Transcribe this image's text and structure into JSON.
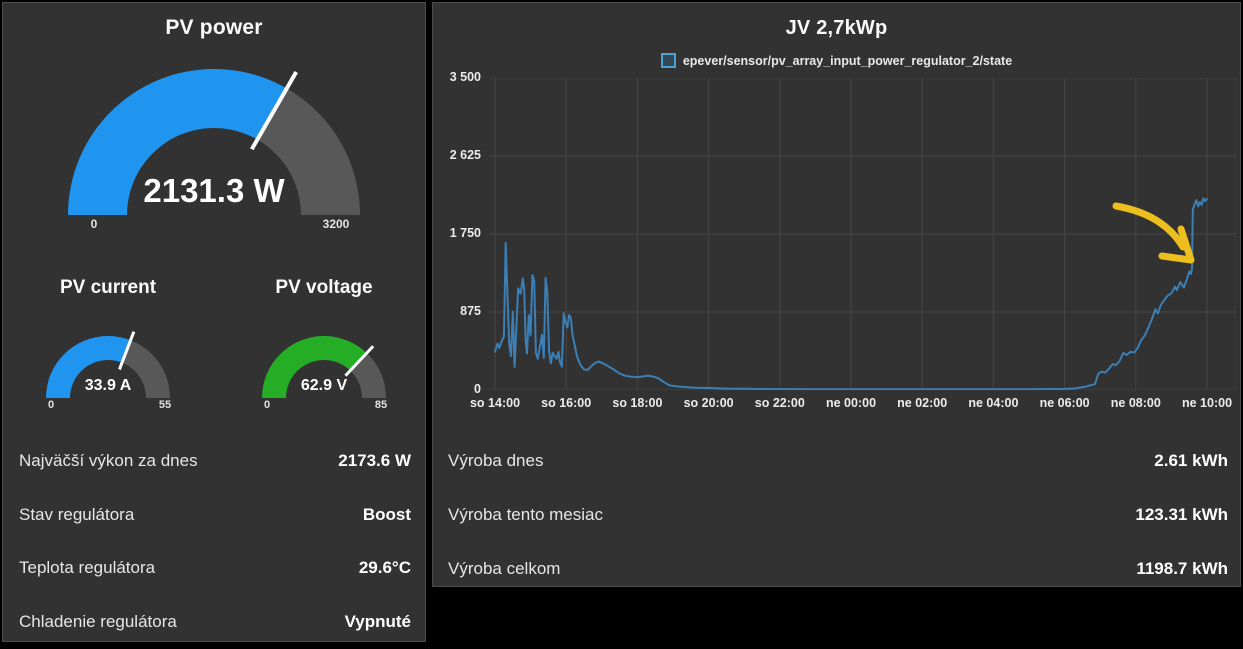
{
  "left_panel": {
    "gauges": [
      {
        "title": "PV power",
        "value_label": "2131.3 W",
        "value": 2131.3,
        "min": 0,
        "max": 3200,
        "min_label": "0",
        "max_label": "3200",
        "fill_color": "#2095f0",
        "track_color": "#585858"
      },
      {
        "title": "PV current",
        "value_label": "33.9 A",
        "value": 33.9,
        "min": 0,
        "max": 55,
        "min_label": "0",
        "max_label": "55",
        "fill_color": "#2095f0",
        "track_color": "#585858"
      },
      {
        "title": "PV voltage",
        "value_label": "62.9 V",
        "value": 62.9,
        "min": 0,
        "max": 85,
        "min_label": "0",
        "max_label": "85",
        "fill_color": "#25ad25",
        "track_color": "#585858"
      }
    ],
    "stats": [
      {
        "label": "Najväčší výkon za dnes",
        "value": "2173.6 W"
      },
      {
        "label": "Stav regulátora",
        "value": "Boost"
      },
      {
        "label": "Teplota regulátora",
        "value": "29.6°C"
      },
      {
        "label": "Chladenie regulátora",
        "value": "Vypnuté"
      }
    ]
  },
  "right_panel": {
    "title": "JV 2,7kWp",
    "legend": {
      "label": "epever/sensor/pv_array_input_power_regulator_2/state",
      "color": "#4aa3d6"
    },
    "stats": [
      {
        "label": "Výroba dnes",
        "value": "2.61 kWh"
      },
      {
        "label": "Výroba tento mesiac",
        "value": "123.31 kWh"
      },
      {
        "label": "Výroba celkom",
        "value": "1198.7 kWh"
      }
    ]
  },
  "chart_data": {
    "type": "line",
    "title": "JV 2,7kWp",
    "legend_position": "top",
    "grid": true,
    "grid_color": "#474747",
    "ylim": [
      0,
      3500
    ],
    "y_ticks": [
      {
        "value": 3500,
        "label": "3 500"
      },
      {
        "value": 2625,
        "label": "2 625"
      },
      {
        "value": 1750,
        "label": "1 750"
      },
      {
        "value": 875,
        "label": "875"
      },
      {
        "value": 0,
        "label": "0"
      }
    ],
    "x_hours_range": [
      0,
      20
    ],
    "x_tick_labels": [
      "so 14:00",
      "so 16:00",
      "so 18:00",
      "so 20:00",
      "so 22:00",
      "ne 00:00",
      "ne 02:00",
      "ne 04:00",
      "ne 06:00",
      "ne 08:00",
      "ne 10:00"
    ],
    "series": [
      {
        "name": "epever/sensor/pv_array_input_power_regulator_2/state",
        "unit": "W",
        "color": "#3b7fb5",
        "points_hours_watts": [
          [
            0,
            430
          ],
          [
            0.07,
            520
          ],
          [
            0.12,
            470
          ],
          [
            0.18,
            540
          ],
          [
            0.25,
            600
          ],
          [
            0.3,
            1650
          ],
          [
            0.35,
            1050
          ],
          [
            0.4,
            520
          ],
          [
            0.45,
            380
          ],
          [
            0.5,
            880
          ],
          [
            0.55,
            260
          ],
          [
            0.6,
            700
          ],
          [
            0.65,
            1140
          ],
          [
            0.72,
            1080
          ],
          [
            0.78,
            1250
          ],
          [
            0.82,
            1130
          ],
          [
            0.86,
            560
          ],
          [
            0.9,
            410
          ],
          [
            0.95,
            840
          ],
          [
            1,
            610
          ],
          [
            1.05,
            1290
          ],
          [
            1.1,
            1220
          ],
          [
            1.15,
            420
          ],
          [
            1.2,
            350
          ],
          [
            1.27,
            500
          ],
          [
            1.32,
            620
          ],
          [
            1.37,
            360
          ],
          [
            1.42,
            1260
          ],
          [
            1.47,
            1090
          ],
          [
            1.52,
            430
          ],
          [
            1.57,
            300
          ],
          [
            1.62,
            420
          ],
          [
            1.68,
            380
          ],
          [
            1.73,
            350
          ],
          [
            1.78,
            430
          ],
          [
            1.83,
            310
          ],
          [
            1.88,
            260
          ],
          [
            1.93,
            860
          ],
          [
            1.98,
            760
          ],
          [
            2.03,
            700
          ],
          [
            2.08,
            840
          ],
          [
            2.13,
            810
          ],
          [
            2.18,
            610
          ],
          [
            2.23,
            520
          ],
          [
            2.3,
            380
          ],
          [
            2.4,
            280
          ],
          [
            2.5,
            230
          ],
          [
            2.6,
            225
          ],
          [
            2.7,
            265
          ],
          [
            2.8,
            300
          ],
          [
            2.9,
            320
          ],
          [
            3,
            305
          ],
          [
            3.1,
            285
          ],
          [
            3.2,
            262
          ],
          [
            3.35,
            225
          ],
          [
            3.5,
            185
          ],
          [
            3.65,
            160
          ],
          [
            3.8,
            150
          ],
          [
            4,
            142
          ],
          [
            4.15,
            152
          ],
          [
            4.3,
            162
          ],
          [
            4.45,
            150
          ],
          [
            4.6,
            128
          ],
          [
            4.75,
            88
          ],
          [
            4.9,
            52
          ],
          [
            5.1,
            40
          ],
          [
            5.35,
            32
          ],
          [
            5.6,
            26
          ],
          [
            6,
            22
          ],
          [
            6.5,
            16
          ],
          [
            7,
            13
          ],
          [
            7.5,
            11
          ],
          [
            8,
            10
          ],
          [
            9,
            9
          ],
          [
            10,
            8
          ],
          [
            11,
            8
          ],
          [
            12,
            8
          ],
          [
            13,
            8
          ],
          [
            14,
            8
          ],
          [
            15,
            9
          ],
          [
            16,
            12
          ],
          [
            16.3,
            18
          ],
          [
            16.6,
            38
          ],
          [
            16.75,
            55
          ],
          [
            16.85,
            65
          ],
          [
            16.95,
            185
          ],
          [
            17.05,
            205
          ],
          [
            17.15,
            195
          ],
          [
            17.25,
            240
          ],
          [
            17.35,
            290
          ],
          [
            17.45,
            280
          ],
          [
            17.55,
            330
          ],
          [
            17.65,
            415
          ],
          [
            17.75,
            395
          ],
          [
            17.85,
            430
          ],
          [
            17.95,
            420
          ],
          [
            18.05,
            470
          ],
          [
            18.15,
            555
          ],
          [
            18.25,
            610
          ],
          [
            18.35,
            700
          ],
          [
            18.45,
            790
          ],
          [
            18.55,
            905
          ],
          [
            18.62,
            860
          ],
          [
            18.7,
            950
          ],
          [
            18.8,
            1010
          ],
          [
            18.9,
            1060
          ],
          [
            19,
            1085
          ],
          [
            19.1,
            1160
          ],
          [
            19.15,
            1120
          ],
          [
            19.25,
            1210
          ],
          [
            19.35,
            1150
          ],
          [
            19.45,
            1260
          ],
          [
            19.5,
            1330
          ],
          [
            19.55,
            1300
          ],
          [
            19.58,
            1360
          ],
          [
            19.6,
            2020
          ],
          [
            19.65,
            2080
          ],
          [
            19.7,
            2130
          ],
          [
            19.75,
            2060
          ],
          [
            19.8,
            2110
          ],
          [
            19.85,
            2075
          ],
          [
            19.9,
            2150
          ],
          [
            19.95,
            2120
          ],
          [
            20,
            2140
          ]
        ]
      }
    ],
    "annotation": {
      "type": "hand-drawn-arrow",
      "color": "#ecbf1e",
      "points_at": "power jump to ~2100 W shortly before ne 10:00"
    }
  }
}
